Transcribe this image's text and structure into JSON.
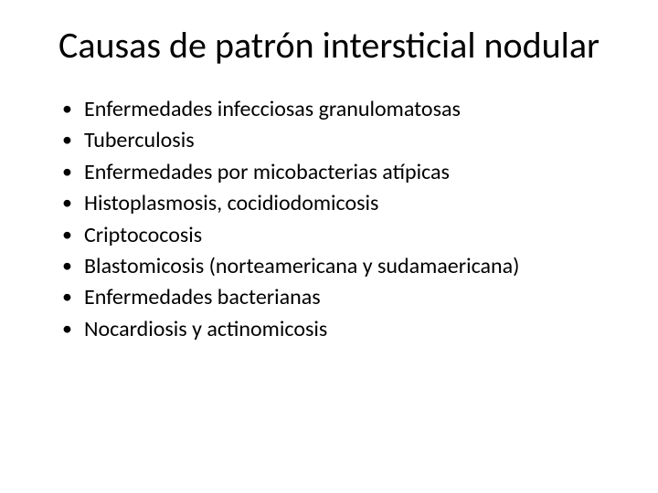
{
  "slide": {
    "title": "Causas de patrón intersticial nodular",
    "title_fontsize": 40,
    "title_color": "#000000",
    "background_color": "#ffffff",
    "body_fontsize": 24,
    "body_color": "#000000",
    "bullets": [
      "Enfermedades infecciosas granulomatosas",
      "Tuberculosis",
      "Enfermedades por micobacterias atípicas",
      " Histoplasmosis, cocidiodomicosis",
      " Criptococosis",
      "  Blastomicosis (norteamericana y sudamaericana)",
      "Enfermedades bacterianas",
      "Nocardiosis  y actinomicosis"
    ]
  }
}
